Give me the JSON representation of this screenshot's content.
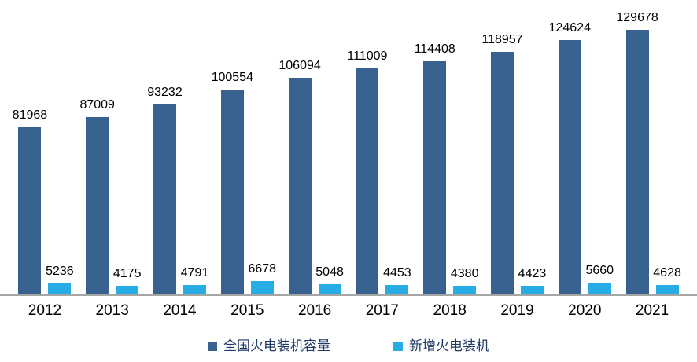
{
  "chart_data": {
    "type": "bar",
    "title": "",
    "xlabel": "",
    "ylabel": "",
    "categories": [
      "2012",
      "2013",
      "2014",
      "2015",
      "2016",
      "2017",
      "2018",
      "2019",
      "2020",
      "2021"
    ],
    "series": [
      {
        "name": "全国火电装机容量",
        "color": "#38618F",
        "values": [
          81968,
          87009,
          93232,
          100554,
          106094,
          111009,
          114408,
          118957,
          124624,
          129678
        ]
      },
      {
        "name": "新增火电装机",
        "color": "#27ACE3",
        "values": [
          5236,
          4175,
          4791,
          6678,
          5048,
          4453,
          4380,
          4423,
          5660,
          4628
        ]
      }
    ],
    "ylim": [
      0,
      140000
    ],
    "grid": false,
    "data_labels": true,
    "legend_position": "bottom",
    "axis_line_color": "#A6A6A6",
    "label_color": "#000000",
    "legend_text_color": "#1F3864",
    "background_color": "#FFFFFF"
  }
}
